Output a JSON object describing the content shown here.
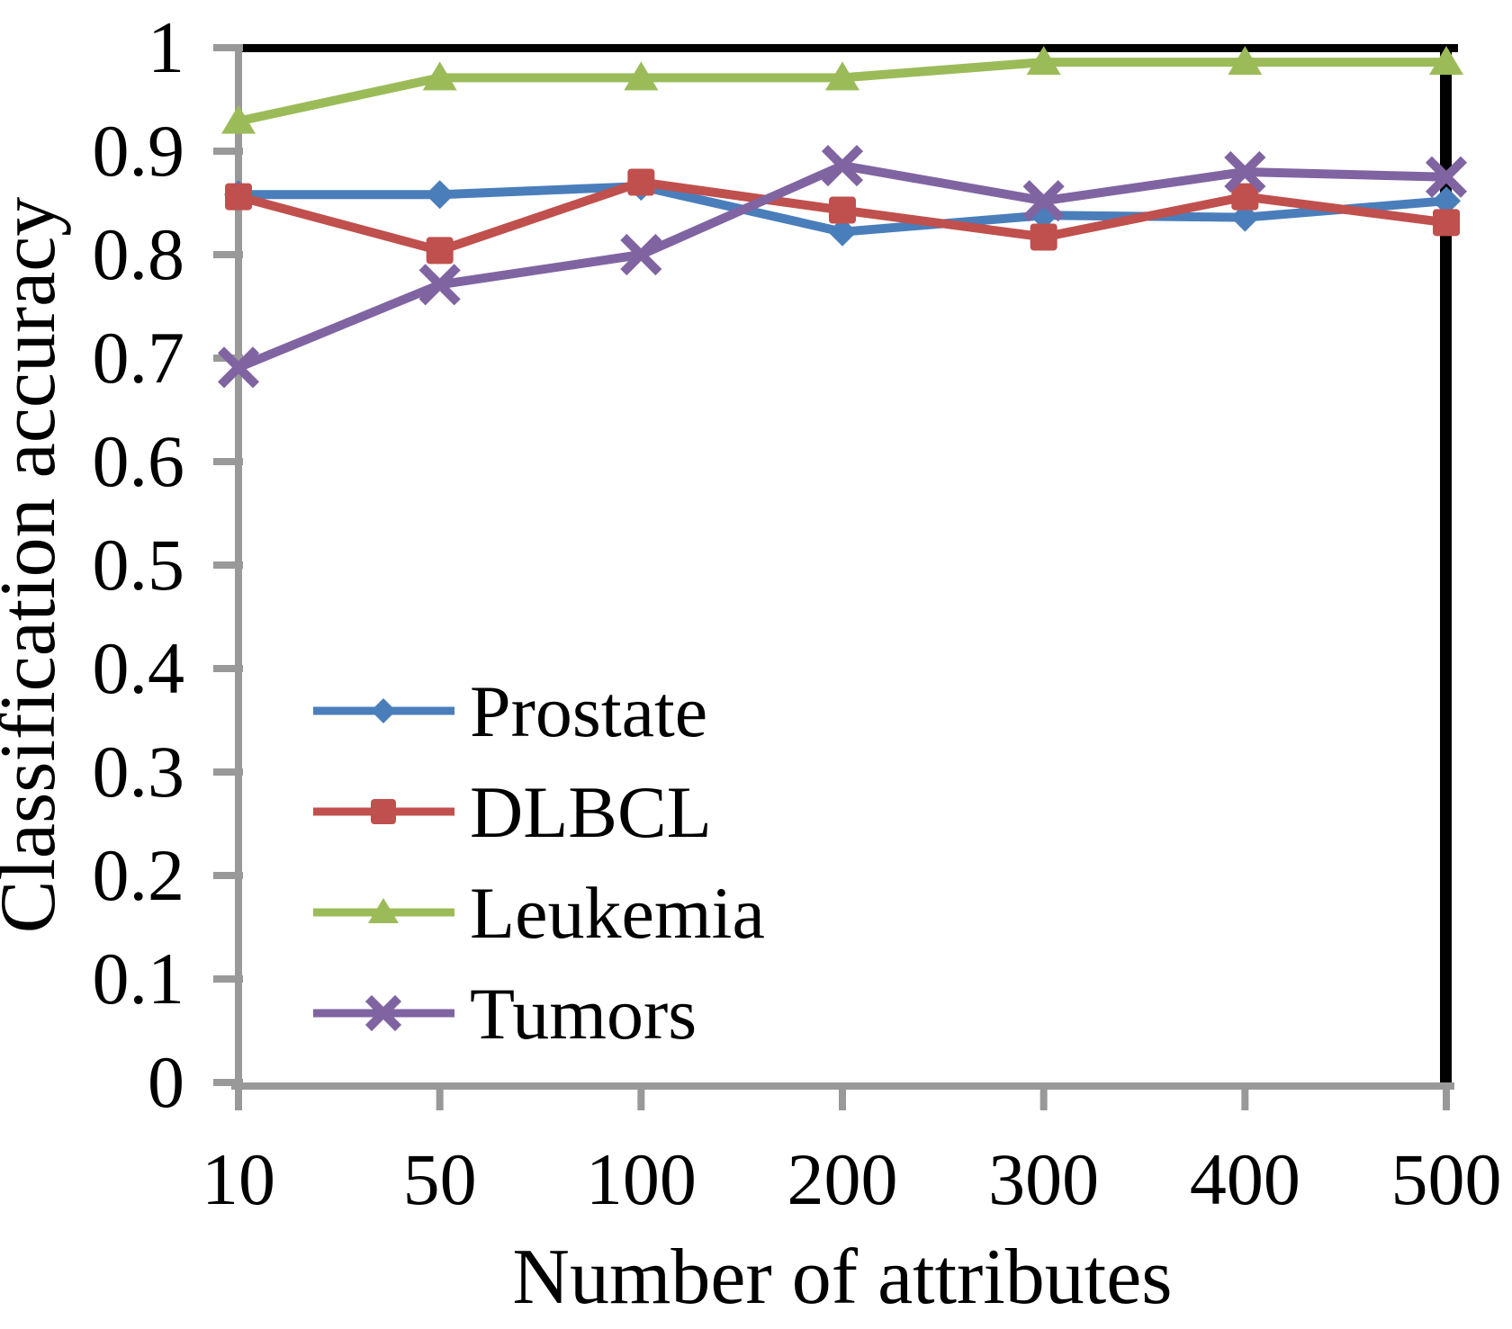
{
  "chart_data": {
    "type": "line",
    "title": "",
    "xlabel": "Number of attributes",
    "ylabel": "Classification accuracy",
    "categories": [
      "10",
      "50",
      "100",
      "200",
      "300",
      "400",
      "500"
    ],
    "y_tick_labels": [
      "0",
      "0.1",
      "0.2",
      "0.3",
      "0.4",
      "0.5",
      "0.6",
      "0.7",
      "0.8",
      "0.9",
      "1"
    ],
    "y_tick_values": [
      0,
      0.1,
      0.2,
      0.3,
      0.4,
      0.5,
      0.6,
      0.7,
      0.8,
      0.9,
      1
    ],
    "ylim": [
      0,
      1
    ],
    "grid": false,
    "legend_position": "inside-lower-left",
    "axis_color": "#999999",
    "frame_color": "#000000",
    "text_color": "#000000",
    "series": [
      {
        "name": "Prostate",
        "color": "#4A7EBB",
        "marker": "diamond",
        "values": [
          0.858,
          0.858,
          0.866,
          0.822,
          0.838,
          0.836,
          0.852
        ]
      },
      {
        "name": "DLBCL",
        "color": "#C0504D",
        "marker": "square",
        "values": [
          0.856,
          0.804,
          0.87,
          0.843,
          0.817,
          0.856,
          0.831
        ]
      },
      {
        "name": "Leukemia",
        "color": "#9BBB59",
        "marker": "triangle",
        "values": [
          0.929,
          0.971,
          0.971,
          0.971,
          0.986,
          0.986,
          0.986
        ]
      },
      {
        "name": "Tumors",
        "color": "#8064A2",
        "marker": "x",
        "values": [
          0.691,
          0.771,
          0.8,
          0.886,
          0.852,
          0.88,
          0.875
        ]
      }
    ]
  }
}
